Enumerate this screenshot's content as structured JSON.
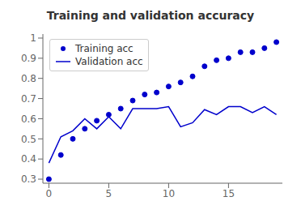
{
  "chart_data": {
    "type": "line",
    "title": "Training and validation accuracy",
    "x": [
      0,
      1,
      2,
      3,
      4,
      5,
      6,
      7,
      8,
      9,
      10,
      11,
      12,
      13,
      14,
      15,
      16,
      17,
      18,
      19
    ],
    "series": [
      {
        "name": "Training acc",
        "color": "#0000cc",
        "marker": "circle",
        "line_style": "none",
        "values": [
          0.3,
          0.42,
          0.5,
          0.55,
          0.59,
          0.62,
          0.65,
          0.69,
          0.72,
          0.73,
          0.76,
          0.78,
          0.81,
          0.86,
          0.89,
          0.9,
          0.93,
          0.93,
          0.95,
          0.98
        ]
      },
      {
        "name": "Validation acc",
        "color": "#0000cc",
        "marker": "none",
        "line_style": "solid",
        "values": [
          0.38,
          0.51,
          0.54,
          0.6,
          0.55,
          0.61,
          0.55,
          0.65,
          0.65,
          0.65,
          0.66,
          0.56,
          0.58,
          0.645,
          0.62,
          0.66,
          0.66,
          0.63,
          0.66,
          0.62
        ]
      }
    ],
    "xlim": [
      -0.5,
      19.5
    ],
    "xticks": [
      0,
      5,
      10,
      15
    ],
    "ylim": [
      0.28,
      1.02
    ],
    "yticks": [
      0.3,
      0.4,
      0.5,
      0.6,
      0.7,
      0.8,
      0.9,
      1.0
    ],
    "grid": false,
    "legend": "upper left"
  }
}
